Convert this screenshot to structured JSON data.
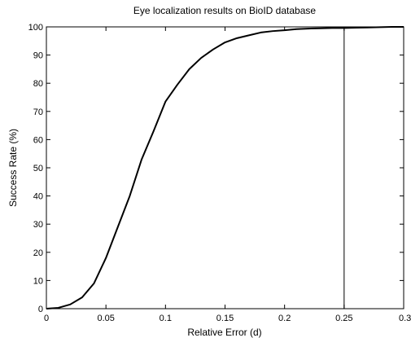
{
  "chart_data": {
    "type": "line",
    "title": "Eye localization results on BioID database",
    "xlabel": "Relative Error (d)",
    "ylabel": "Success Rate (%)",
    "xlim": [
      0,
      0.3
    ],
    "ylim": [
      0,
      100
    ],
    "xticks": [
      0,
      0.05,
      0.1,
      0.15,
      0.2,
      0.25,
      0.3
    ],
    "xtick_labels": [
      "0",
      "0.05",
      "0.1",
      "0.15",
      "0.2",
      "0.25",
      "0.3"
    ],
    "yticks": [
      0,
      10,
      20,
      30,
      40,
      50,
      60,
      70,
      80,
      90,
      100
    ],
    "ytick_labels": [
      "0",
      "10",
      "20",
      "30",
      "40",
      "50",
      "60",
      "70",
      "80",
      "90",
      "100"
    ],
    "grid": false,
    "series": [
      {
        "x": [
          0,
          0.01,
          0.02,
          0.03,
          0.04,
          0.05,
          0.06,
          0.07,
          0.08,
          0.09,
          0.1,
          0.11,
          0.12,
          0.13,
          0.14,
          0.15,
          0.16,
          0.17,
          0.18,
          0.19,
          0.2,
          0.21,
          0.22,
          0.23,
          0.24,
          0.25,
          0.26,
          0.27,
          0.28,
          0.29,
          0.3
        ],
        "y": [
          0,
          0.3,
          1.5,
          4,
          9,
          18,
          29,
          40,
          53,
          63,
          73.5,
          79.5,
          85,
          89,
          92,
          94.5,
          96,
          97,
          98,
          98.5,
          98.8,
          99.2,
          99.4,
          99.5,
          99.6,
          99.6,
          99.7,
          99.8,
          99.9,
          100,
          100
        ],
        "color": "#000000"
      }
    ],
    "reference_lines": [
      {
        "axis": "x",
        "value": 0.25
      }
    ]
  }
}
